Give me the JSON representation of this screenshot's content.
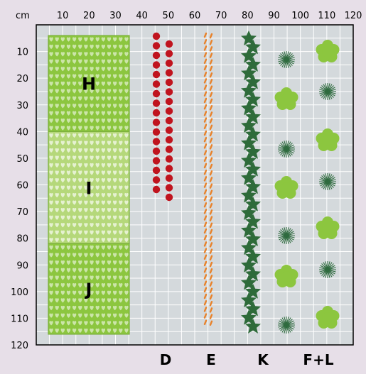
{
  "axis": {
    "unit_label": "cm",
    "x_ticks": [
      "10",
      "20",
      "30",
      "40",
      "50",
      "60",
      "70",
      "80",
      "90",
      "100",
      "110",
      "120"
    ],
    "y_ticks": [
      "10",
      "20",
      "30",
      "40",
      "50",
      "60",
      "70",
      "80",
      "90",
      "100",
      "110",
      "120"
    ]
  },
  "beds": [
    {
      "label": "H",
      "from_cm": 4,
      "to_cm": 40,
      "shade": "dark"
    },
    {
      "label": "I",
      "from_cm": 40,
      "to_cm": 82,
      "shade": "light"
    },
    {
      "label": "J",
      "from_cm": 82,
      "to_cm": 116,
      "shade": "dark"
    }
  ],
  "rows": [
    {
      "label": "D",
      "plant": "red-dot"
    },
    {
      "label": "E",
      "plant": "orange-stripe"
    },
    {
      "label": "K",
      "plant": "green-star"
    },
    {
      "label": "F+L",
      "plant": "flower-and-burst"
    }
  ],
  "colors": {
    "background": "#e7dfe8",
    "grid_fill": "#d4d9dc",
    "grid_line": "#ffffff",
    "bed_dark": "#8cc63f",
    "bed_light": "#b5d87a",
    "red_dot": "#c0141e",
    "orange": "#e8822a",
    "star_green": "#2e6b3a",
    "flower_green": "#8cc63f",
    "burst_green": "#2f6b3f"
  }
}
